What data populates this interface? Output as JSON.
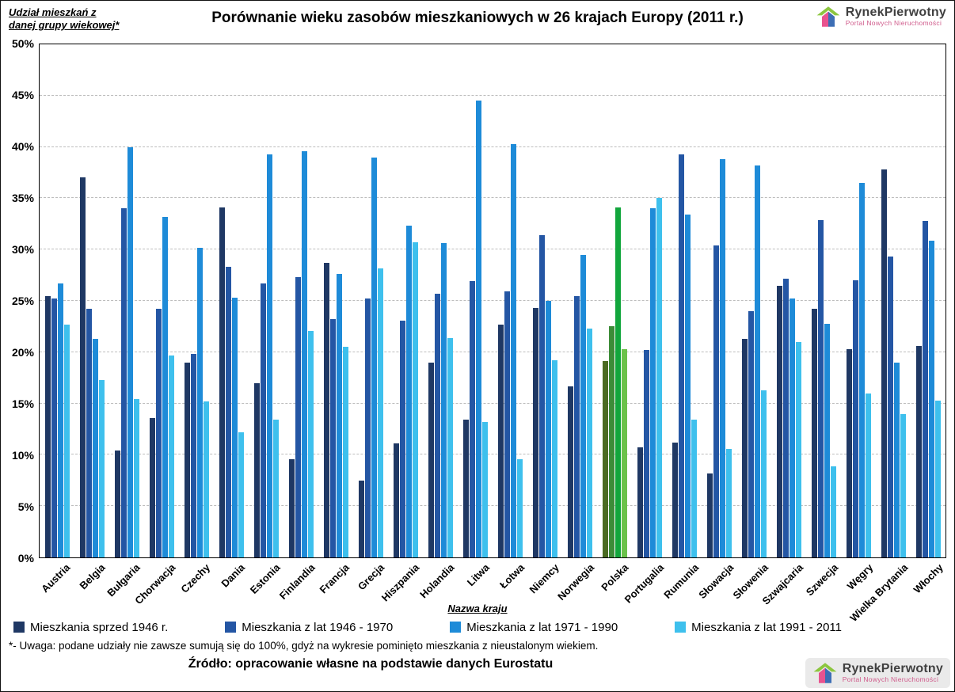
{
  "page": {
    "y_axis_note_line1": "Udział mieszkań z",
    "y_axis_note_line2": "danej grupy wiekowej*",
    "x_axis_title": "Nazwa kraju",
    "footnote": "*- Uwaga: podane udziały nie zawsze sumują się do 100%, gdyż na wykresie pominięto mieszkania z nieustalonym wiekiem.",
    "source": "Źródło: opracowanie własne na podstawie danych Eurostatu"
  },
  "logo": {
    "name": "RynekPierwotny",
    "subtitle": "Portal Nowych Nieruchomości",
    "colors": {
      "roof": "#8CC63F",
      "front": "#E8538F",
      "side": "#3D6EB5",
      "title": "#404040",
      "subtitle": "#D05C8C"
    }
  },
  "chart_data": {
    "type": "bar",
    "title": "Porównanie wieku zasobów mieszkaniowych w 26 krajach Europy (2011 r.)",
    "xlabel": "Nazwa kraju",
    "ylabel": "Udział mieszkań z danej grupy wiekowej*",
    "ylim": [
      0,
      50
    ],
    "grid": "horizontal-dashed",
    "legend_position": "bottom",
    "y_ticks": [
      "0%",
      "5%",
      "10%",
      "15%",
      "20%",
      "25%",
      "30%",
      "35%",
      "40%",
      "45%",
      "50%"
    ],
    "categories": [
      "Austria",
      "Belgia",
      "Bułgaria",
      "Chorwacja",
      "Czechy",
      "Dania",
      "Estonia",
      "Finlandia",
      "Francja",
      "Grecja",
      "Hiszpania",
      "Holandia",
      "Litwa",
      "Łotwa",
      "Niemcy",
      "Norwegia",
      "Polska",
      "Portugalia",
      "Rumunia",
      "Słowacja",
      "Słowenia",
      "Szwajcaria",
      "Szwecja",
      "Węgry",
      "Wielka Brytania",
      "Włochy"
    ],
    "series": [
      {
        "name": "Mieszkania sprzed 1946 r.",
        "values": [
          25.5,
          37.0,
          10.4,
          13.6,
          19.0,
          34.1,
          17.0,
          9.6,
          28.7,
          7.5,
          11.1,
          19.0,
          13.4,
          22.7,
          24.3,
          16.7,
          19.1,
          10.7,
          11.2,
          8.2,
          21.3,
          26.5,
          24.2,
          20.3,
          37.8,
          20.6
        ]
      },
      {
        "name": "Mieszkania z lat 1946 - 1970",
        "values": [
          25.2,
          24.2,
          34.0,
          24.2,
          19.8,
          28.3,
          26.7,
          27.3,
          23.2,
          25.2,
          23.1,
          25.7,
          26.9,
          25.9,
          31.4,
          25.5,
          22.5,
          20.2,
          39.3,
          30.4,
          24.0,
          27.2,
          32.9,
          27.0,
          29.3,
          32.8
        ]
      },
      {
        "name": "Mieszkania z lat 1971 - 1990",
        "values": [
          26.7,
          21.3,
          40.0,
          33.2,
          30.2,
          25.3,
          39.3,
          39.6,
          27.6,
          39.0,
          32.3,
          30.6,
          44.5,
          40.3,
          25.0,
          29.5,
          34.1,
          34.0,
          33.4,
          38.8,
          38.2,
          25.2,
          22.8,
          36.5,
          19.0,
          30.9
        ]
      },
      {
        "name": "Mieszkania z lat 1991 - 2011",
        "values": [
          22.7,
          17.3,
          15.4,
          19.7,
          15.2,
          12.2,
          13.4,
          22.1,
          20.5,
          28.2,
          30.7,
          21.4,
          13.2,
          9.6,
          19.2,
          22.3,
          20.3,
          35.0,
          13.4,
          10.6,
          16.3,
          21.0,
          8.9,
          16.0,
          14.0,
          15.3
        ]
      }
    ],
    "series_colors": [
      "#1F3864",
      "#2456A4",
      "#1E8BD8",
      "#3EC0ED"
    ],
    "highlight_category": "Polska",
    "highlight_colors": [
      "#4B6B22",
      "#3C8C38",
      "#12A63C",
      "#6BC24A"
    ]
  }
}
